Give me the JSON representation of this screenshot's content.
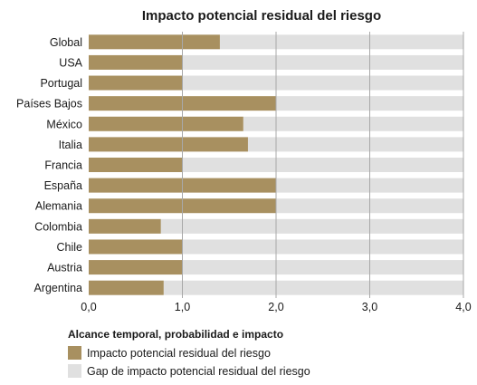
{
  "chart_data": {
    "type": "bar",
    "orientation": "horizontal",
    "title": "Impacto potencial residual del riesgo",
    "categories": [
      "Global",
      "USA",
      "Portugal",
      "Países Bajos",
      "México",
      "Italia",
      "Francia",
      "España",
      "Alemania",
      "Colombia",
      "Chile",
      "Austria",
      "Argentina"
    ],
    "series": [
      {
        "name": "Impacto potencial residual del riesgo",
        "color": "#a89060",
        "values": [
          1.4,
          1.0,
          1.0,
          2.0,
          1.65,
          1.7,
          1.0,
          2.0,
          2.0,
          0.77,
          1.0,
          1.0,
          0.8
        ]
      },
      {
        "name": "Gap de impacto potencial residual del riesgo",
        "color": "#e0e0e0",
        "values": [
          2.6,
          3.0,
          3.0,
          2.0,
          2.35,
          2.3,
          3.0,
          2.0,
          2.0,
          3.23,
          3.0,
          3.0,
          3.2
        ]
      }
    ],
    "stacked": true,
    "xlim": [
      0,
      4
    ],
    "xticks": [
      "0,0",
      "1,0",
      "2,0",
      "3,0",
      "4,0"
    ],
    "grid": true,
    "legend": {
      "title": "Alcance temporal, probabilidad e impacto",
      "placement": "bottom-left"
    }
  }
}
